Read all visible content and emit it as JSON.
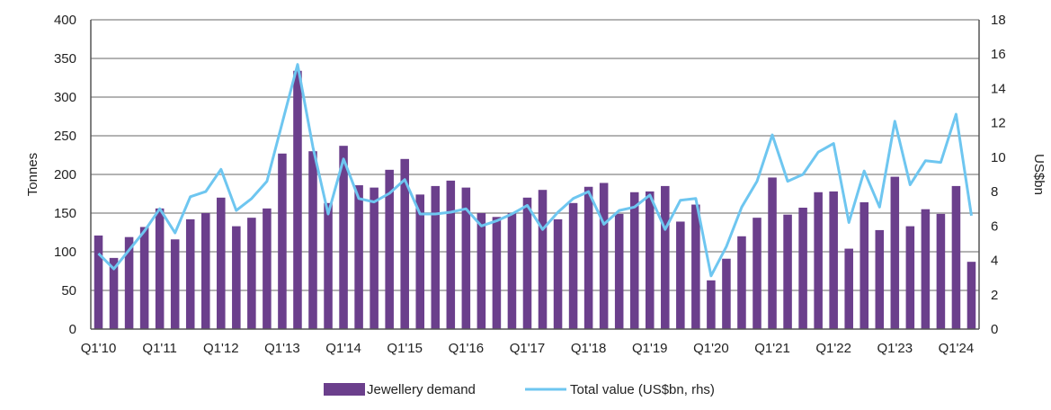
{
  "chart_data": {
    "type": "bar",
    "title": "",
    "xlabel": "",
    "ylabel": "Tonnes",
    "y2label": "US$bn",
    "ylim": [
      0,
      400
    ],
    "y2lim": [
      0,
      18
    ],
    "yticks": [
      0,
      50,
      100,
      150,
      200,
      250,
      300,
      350,
      400
    ],
    "y2ticks": [
      0,
      2,
      4,
      6,
      8,
      10,
      12,
      14,
      16,
      18
    ],
    "grid": true,
    "legend_position": "bottom",
    "categories": [
      "Q1'10",
      "Q2'10",
      "Q3'10",
      "Q4'10",
      "Q1'11",
      "Q2'11",
      "Q3'11",
      "Q4'11",
      "Q1'12",
      "Q2'12",
      "Q3'12",
      "Q4'12",
      "Q1'13",
      "Q2'13",
      "Q3'13",
      "Q4'13",
      "Q1'14",
      "Q2'14",
      "Q3'14",
      "Q4'14",
      "Q1'15",
      "Q2'15",
      "Q3'15",
      "Q4'15",
      "Q1'16",
      "Q2'16",
      "Q3'16",
      "Q4'16",
      "Q1'17",
      "Q2'17",
      "Q3'17",
      "Q4'17",
      "Q1'18",
      "Q2'18",
      "Q3'18",
      "Q4'18",
      "Q1'19",
      "Q2'19",
      "Q3'19",
      "Q4'19",
      "Q1'20",
      "Q2'20",
      "Q3'20",
      "Q4'20",
      "Q1'21",
      "Q2'21",
      "Q3'21",
      "Q4'21",
      "Q1'22",
      "Q2'22",
      "Q3'22",
      "Q4'22",
      "Q1'23",
      "Q2'23",
      "Q3'23",
      "Q4'23",
      "Q1'24",
      "Q2'24"
    ],
    "xtick_labels": [
      "Q1'10",
      "Q1'11",
      "Q1'12",
      "Q1'13",
      "Q1'14",
      "Q1'15",
      "Q1'16",
      "Q1'17",
      "Q1'18",
      "Q1'19",
      "Q1'20",
      "Q1'21",
      "Q1'22",
      "Q1'23",
      "Q1'24"
    ],
    "series": [
      {
        "name": "Jewellery demand",
        "type": "bar",
        "axis": "left",
        "color": "#6b3f8c",
        "values": [
          121,
          92,
          119,
          132,
          156,
          116,
          142,
          150,
          170,
          133,
          144,
          156,
          227,
          334,
          230,
          163,
          237,
          186,
          183,
          206,
          220,
          174,
          185,
          192,
          183,
          150,
          145,
          150,
          170,
          180,
          142,
          163,
          184,
          189,
          149,
          177,
          178,
          185,
          139,
          161,
          63,
          91,
          120,
          144,
          196,
          148,
          157,
          177,
          178,
          104,
          164,
          128,
          197,
          133,
          155,
          149,
          185,
          87
        ]
      },
      {
        "name": "Total value (US$bn, rhs)",
        "type": "line",
        "axis": "right",
        "color": "#6ec6f0",
        "values": [
          4.4,
          3.5,
          4.6,
          5.7,
          7.0,
          5.6,
          7.7,
          8.0,
          9.3,
          6.9,
          7.6,
          8.6,
          12.0,
          15.4,
          10.6,
          6.7,
          9.9,
          7.6,
          7.4,
          7.9,
          8.7,
          6.7,
          6.7,
          6.8,
          7.0,
          6.0,
          6.3,
          6.7,
          7.2,
          5.8,
          6.8,
          7.6,
          8.0,
          6.1,
          6.9,
          7.1,
          7.8,
          5.8,
          7.5,
          7.6,
          3.1,
          4.8,
          7.1,
          8.6,
          11.3,
          8.6,
          9.0,
          10.3,
          10.8,
          6.2,
          9.2,
          7.1,
          12.1,
          8.4,
          9.8,
          9.7,
          12.5,
          6.6
        ]
      }
    ]
  }
}
